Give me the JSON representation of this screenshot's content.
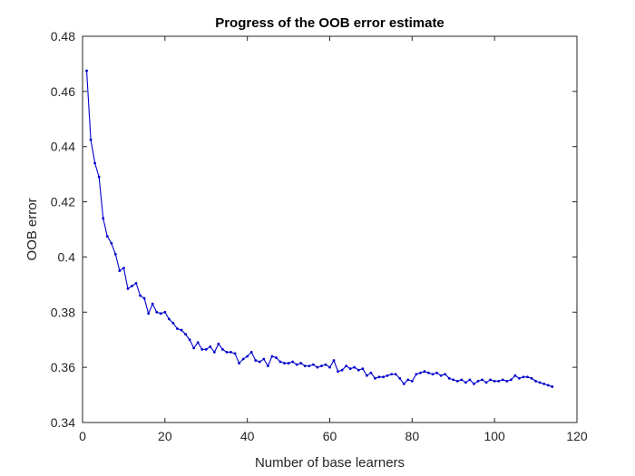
{
  "chart_data": {
    "type": "line",
    "title": "Progress of the OOB error estimate",
    "xlabel": "Number of base learners",
    "ylabel": "OOB error",
    "xlim": [
      0,
      120
    ],
    "ylim": [
      0.34,
      0.48
    ],
    "xticks": [
      0,
      20,
      40,
      60,
      80,
      100,
      120
    ],
    "xtick_labels": [
      "0",
      "20",
      "40",
      "60",
      "80",
      "100",
      "120"
    ],
    "yticks": [
      0.34,
      0.36,
      0.38,
      0.4,
      0.42,
      0.44,
      0.46,
      0.48
    ],
    "ytick_labels": [
      "0.34",
      "0.36",
      "0.38",
      "0.4",
      "0.42",
      "0.44",
      "0.46",
      "0.48"
    ],
    "grid": false,
    "line_color": "#0000cc",
    "series": [
      {
        "x": [
          1,
          2,
          3,
          4,
          5,
          6,
          7,
          8,
          9,
          10,
          11,
          12,
          13,
          14,
          15,
          16,
          17,
          18,
          19,
          20,
          21,
          22,
          23,
          24,
          25,
          26,
          27,
          28,
          29,
          30,
          31,
          32,
          33,
          34,
          35,
          36,
          37,
          38,
          39,
          40,
          41,
          42,
          43,
          44,
          45,
          46,
          47,
          48,
          49,
          50,
          51,
          52,
          53,
          54,
          55,
          56,
          57,
          58,
          59,
          60,
          61,
          62,
          63,
          64,
          65,
          66,
          67,
          68,
          69,
          70,
          71,
          72,
          73,
          74,
          75,
          76,
          77,
          78,
          79,
          80,
          81,
          82,
          83,
          84,
          85,
          86,
          87,
          88,
          89,
          90,
          91,
          92,
          93,
          94,
          95,
          96,
          97,
          98,
          99,
          100,
          101,
          102,
          103,
          104,
          105,
          106,
          107,
          108,
          109,
          110,
          111,
          112,
          113,
          114
        ],
        "values": [
          0.4675,
          0.4425,
          0.434,
          0.429,
          0.414,
          0.4075,
          0.405,
          0.401,
          0.395,
          0.396,
          0.3885,
          0.3895,
          0.3905,
          0.386,
          0.385,
          0.3795,
          0.383,
          0.38,
          0.3795,
          0.38,
          0.3775,
          0.376,
          0.374,
          0.3735,
          0.372,
          0.37,
          0.367,
          0.369,
          0.3665,
          0.3665,
          0.3675,
          0.3655,
          0.3685,
          0.3665,
          0.3655,
          0.3655,
          0.365,
          0.3615,
          0.363,
          0.364,
          0.3655,
          0.3625,
          0.362,
          0.363,
          0.3605,
          0.364,
          0.3635,
          0.362,
          0.3615,
          0.3615,
          0.362,
          0.361,
          0.3615,
          0.3605,
          0.3605,
          0.361,
          0.36,
          0.3605,
          0.361,
          0.36,
          0.3625,
          0.3585,
          0.359,
          0.3605,
          0.3595,
          0.36,
          0.359,
          0.3595,
          0.357,
          0.358,
          0.356,
          0.3565,
          0.3565,
          0.357,
          0.3575,
          0.3575,
          0.356,
          0.354,
          0.3555,
          0.355,
          0.3575,
          0.358,
          0.3585,
          0.358,
          0.3575,
          0.358,
          0.357,
          0.3575,
          0.356,
          0.3555,
          0.355,
          0.3555,
          0.3545,
          0.3555,
          0.354,
          0.355,
          0.3555,
          0.3545,
          0.3555,
          0.355,
          0.355,
          0.3555,
          0.355,
          0.3555,
          0.357,
          0.356,
          0.3565,
          0.3565,
          0.356,
          0.355,
          0.3545,
          0.354,
          0.3535,
          0.353
        ]
      }
    ]
  }
}
